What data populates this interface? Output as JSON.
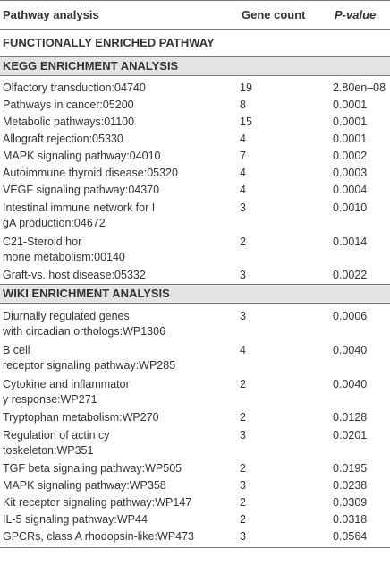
{
  "header": {
    "col1": "Pathway analysis",
    "col2": "Gene count",
    "col3": "P-value",
    "subheading": "FUNCTIONALLY ENRICHED PATHWAY"
  },
  "kegg": {
    "title": "KEGG ENRICHMENT ANALYSIS",
    "rows": [
      {
        "pathway": "Olfactory transduction:04740",
        "count": "19",
        "p": "2.80en–08"
      },
      {
        "pathway": "Pathways in cancer:05200",
        "count": "8",
        "p": "0.0001"
      },
      {
        "pathway": "Metabolic pathways:01100",
        "count": "15",
        "p": "0.0001"
      },
      {
        "pathway": "Allograft rejection:05330",
        "count": "4",
        "p": "0.0001"
      },
      {
        "pathway": "MAPK signaling pathway:04010",
        "count": "7",
        "p": "0.0002"
      },
      {
        "pathway": "Autoimmune thyroid disease:05320",
        "count": "4",
        "p": "0.0003"
      },
      {
        "pathway": "VEGF signaling pathway:04370",
        "count": "4",
        "p": "0.0004"
      },
      {
        "pathway": "Intestinal immune network for IgA production:04672",
        "count": "3",
        "p": "0.0010"
      },
      {
        "pathway": "C21-Steroid hormone metabolism:00140",
        "count": "2",
        "p": "0.0014"
      },
      {
        "pathway": "Graft-vs. host disease:05332",
        "count": "3",
        "p": "0.0022"
      }
    ]
  },
  "wiki": {
    "title": "WIKI ENRICHMENT ANALYSIS",
    "rows": [
      {
        "pathway": "Diurnally regulated genes with circadian orthologs:WP1306",
        "count": "3",
        "p": "0.0006"
      },
      {
        "pathway": "B cell receptor signaling pathway:WP285",
        "count": "4",
        "p": "0.0040"
      },
      {
        "pathway": "Cytokine and inflammatory response:WP271",
        "count": "2",
        "p": "0.0040"
      },
      {
        "pathway": "Tryptophan metabolism:WP270",
        "count": "2",
        "p": "0.0128"
      },
      {
        "pathway": "Regulation of actin cytoskeleton:WP351",
        "count": "3",
        "p": "0.0201"
      },
      {
        "pathway": "TGF beta signaling pathway:WP505",
        "count": "2",
        "p": "0.0195"
      },
      {
        "pathway": "MAPK signaling pathway:WP358",
        "count": "3",
        "p": "0.0238"
      },
      {
        "pathway": "Kit receptor signaling pathway:WP147",
        "count": "2",
        "p": "0.0309"
      },
      {
        "pathway": "IL-5 signaling pathway:WP44",
        "count": "2",
        "p": "0.0318"
      },
      {
        "pathway": "GPCRs, class A rhodopsin-like:WP473",
        "count": "3",
        "p": "0.0564"
      }
    ]
  }
}
